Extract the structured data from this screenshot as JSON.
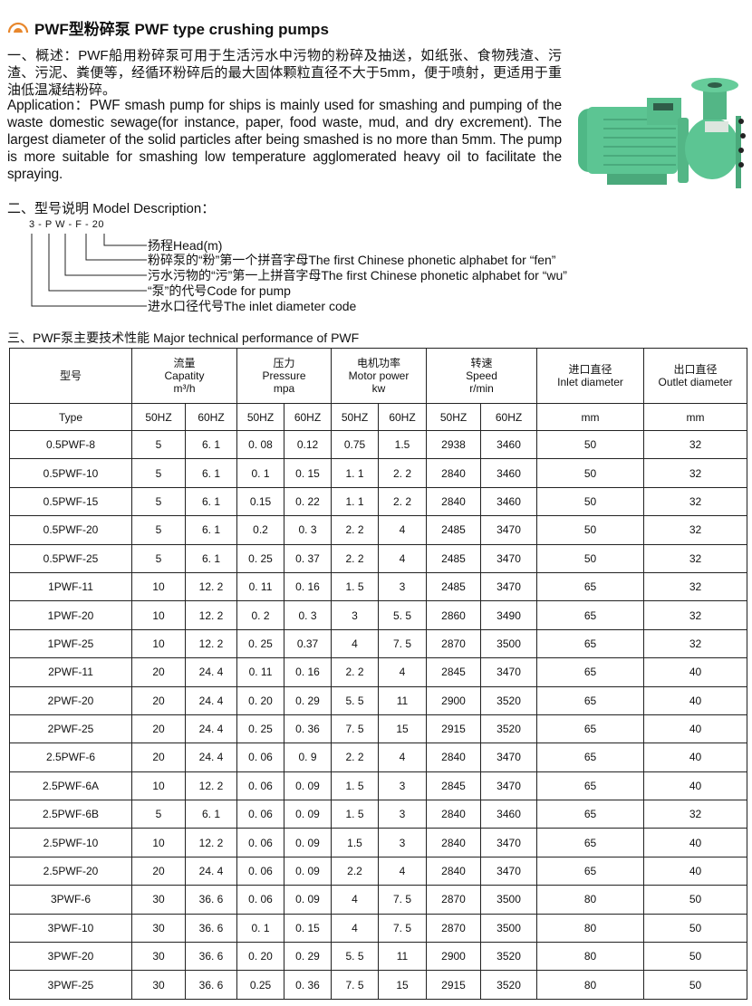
{
  "header": {
    "title": "PWF型粉碎泵 PWF type crushing pumps",
    "logo_icon": "orange-arc-icon",
    "accent_color": "#e8872c"
  },
  "overview": {
    "zh": "一、概述：PWF船用粉碎泵可用于生活污水中污物的粉碎及抽送，如纸张、食物残渣、污渣、污泥、粪便等，经循环粉碎后的最大固体颗粒直径不大于5mm，便于喷射，更适用于重油低温凝结粉碎。",
    "en": "Application：PWF smash pump for ships is mainly used for smashing and pumping of the waste domestic sewage(for instance, paper, food waste, mud, and dry excrement). The largest diameter of the solid particles after being smashed is no more than 5mm. The pump is more suitable for smashing low temperature agglomerated heavy oil to facilitate the spraying."
  },
  "model_description": {
    "heading": "二、型号说明 Model Description：",
    "code": "3 - P  W - F - 20",
    "lines": [
      "扬程Head(m)",
      "粉碎泵的“粉”第一个拼音字母The first Chinese phonetic alphabet for “fen”",
      "污水污物的“污”第一上拼音字母The first Chinese phonetic alphabet for “wu”",
      "“泵”的代号Code for pump",
      "进水口径代号The inlet diameter code"
    ]
  },
  "performance": {
    "heading": "三、PWF泵主要技术性能 Major technical performance of PWF",
    "headers": {
      "type_zh": "型号",
      "capacity": [
        "流量",
        "Capatity",
        "m³/h"
      ],
      "pressure": [
        "压力",
        "Pressure",
        "mpa"
      ],
      "power": [
        "电机功率",
        "Motor power",
        "kw"
      ],
      "speed": [
        "转速",
        "Speed",
        "r/min"
      ],
      "inlet": [
        "进口直径",
        "Inlet diameter"
      ],
      "outlet": [
        "出口直径",
        "Outlet diameter"
      ]
    },
    "subheaders": [
      "Type",
      "50HZ",
      "60HZ",
      "50HZ",
      "60HZ",
      "50HZ",
      "60HZ",
      "50HZ",
      "60HZ",
      "mm",
      "mm"
    ],
    "rows": [
      [
        "0.5PWF-8",
        "5",
        "6. 1",
        "0. 08",
        "0.12",
        "0.75",
        "1.5",
        "2938",
        "3460",
        "50",
        "32"
      ],
      [
        "0.5PWF-10",
        "5",
        "6. 1",
        "0. 1",
        "0. 15",
        "1. 1",
        "2. 2",
        "2840",
        "3460",
        "50",
        "32"
      ],
      [
        "0.5PWF-15",
        "5",
        "6. 1",
        "0.15",
        "0. 22",
        "1. 1",
        "2. 2",
        "2840",
        "3460",
        "50",
        "32"
      ],
      [
        "0.5PWF-20",
        "5",
        "6. 1",
        "0.2",
        "0. 3",
        "2. 2",
        "4",
        "2485",
        "3470",
        "50",
        "32"
      ],
      [
        "0.5PWF-25",
        "5",
        "6. 1",
        "0. 25",
        "0. 37",
        "2. 2",
        "4",
        "2485",
        "3470",
        "50",
        "32"
      ],
      [
        "1PWF-11",
        "10",
        "12. 2",
        "0. 11",
        "0. 16",
        "1. 5",
        "3",
        "2485",
        "3470",
        "65",
        "32"
      ],
      [
        "1PWF-20",
        "10",
        "12. 2",
        "0. 2",
        "0. 3",
        "3",
        "5. 5",
        "2860",
        "3490",
        "65",
        "32"
      ],
      [
        "1PWF-25",
        "10",
        "12. 2",
        "0. 25",
        "0.37",
        "4",
        "7. 5",
        "2870",
        "3500",
        "65",
        "32"
      ],
      [
        "2PWF-11",
        "20",
        "24. 4",
        "0. 11",
        "0. 16",
        "2. 2",
        "4",
        "2845",
        "3470",
        "65",
        "40"
      ],
      [
        "2PWF-20",
        "20",
        "24. 4",
        "0. 20",
        "0. 29",
        "5. 5",
        "11",
        "2900",
        "3520",
        "65",
        "40"
      ],
      [
        "2PWF-25",
        "20",
        "24. 4",
        "0. 25",
        "0. 36",
        "7. 5",
        "15",
        "2915",
        "3520",
        "65",
        "40"
      ],
      [
        "2.5PWF-6",
        "20",
        "24. 4",
        "0. 06",
        "0. 9",
        "2. 2",
        "4",
        "2840",
        "3470",
        "65",
        "40"
      ],
      [
        "2.5PWF-6A",
        "10",
        "12. 2",
        "0. 06",
        "0. 09",
        "1. 5",
        "3",
        "2845",
        "3470",
        "65",
        "40"
      ],
      [
        "2.5PWF-6B",
        "5",
        "6. 1",
        "0. 06",
        "0. 09",
        "1. 5",
        "3",
        "2840",
        "3460",
        "65",
        "32"
      ],
      [
        "2.5PWF-10",
        "10",
        "12. 2",
        "0. 06",
        "0. 09",
        "1.5",
        "3",
        "2840",
        "3470",
        "65",
        "40"
      ],
      [
        "2.5PWF-20",
        "20",
        "24. 4",
        "0. 06",
        "0. 09",
        "2.2",
        "4",
        "2840",
        "3470",
        "65",
        "40"
      ],
      [
        "3PWF-6",
        "30",
        "36. 6",
        "0. 06",
        "0. 09",
        "4",
        "7. 5",
        "2870",
        "3500",
        "80",
        "50"
      ],
      [
        "3PWF-10",
        "30",
        "36. 6",
        "0. 1",
        "0. 15",
        "4",
        "7. 5",
        "2870",
        "3500",
        "80",
        "50"
      ],
      [
        "3PWF-20",
        "30",
        "36. 6",
        "0. 20",
        "0. 29",
        "5. 5",
        "11",
        "2900",
        "3520",
        "80",
        "50"
      ],
      [
        "3PWF-25",
        "30",
        "36. 6",
        "0.25",
        "0. 36",
        "7. 5",
        "15",
        "2915",
        "3520",
        "80",
        "50"
      ]
    ]
  }
}
